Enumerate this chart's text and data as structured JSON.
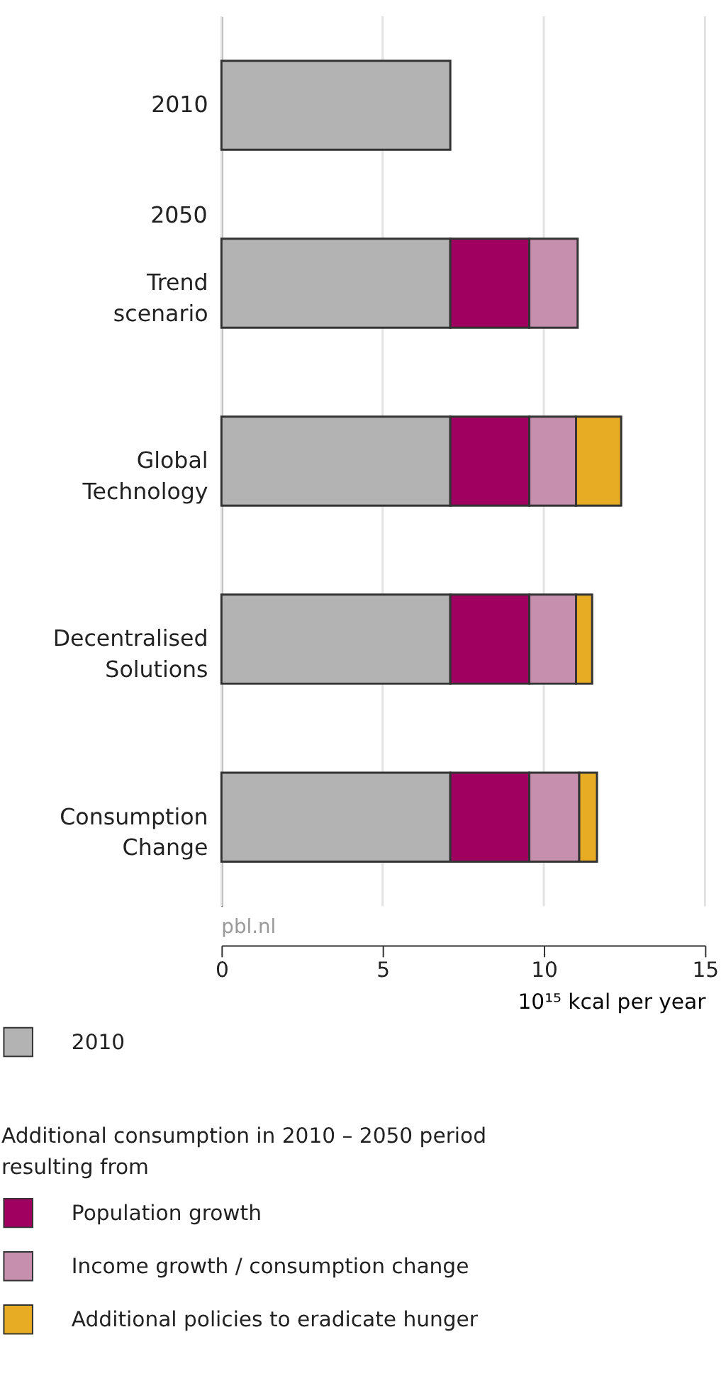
{
  "chart_data": {
    "type": "bar",
    "orientation": "horizontal",
    "stacked": true,
    "categories": [
      "2010",
      "Trend\nscenario",
      "Global\nTechnology",
      "Decentralised\nSolutions",
      "Consumption\nChange"
    ],
    "series": [
      {
        "name": "2010",
        "color": "#b3b3b3",
        "values": [
          7.1,
          7.1,
          7.1,
          7.1,
          7.1
        ]
      },
      {
        "name": "Population growth",
        "color": "#a0005f",
        "values": [
          null,
          2.45,
          2.45,
          2.45,
          2.45
        ]
      },
      {
        "name": "Income growth / consumption change",
        "color": "#c78fae",
        "values": [
          null,
          1.5,
          1.45,
          1.45,
          1.55
        ]
      },
      {
        "name": "Additional policies to eradicate hunger",
        "color": "#e7ac23",
        "values": [
          null,
          null,
          1.4,
          0.5,
          0.55
        ]
      }
    ],
    "xlabel": "10¹⁵ kcal per year",
    "xlim": [
      0,
      15
    ],
    "xticks": [
      0,
      5,
      10,
      15
    ],
    "grid": "x",
    "legend": "bottom",
    "legend_title": "Additional consumption in 2010 – 2050 period\nresulting from",
    "annotations": [
      "2050",
      "pbl.nl"
    ]
  }
}
